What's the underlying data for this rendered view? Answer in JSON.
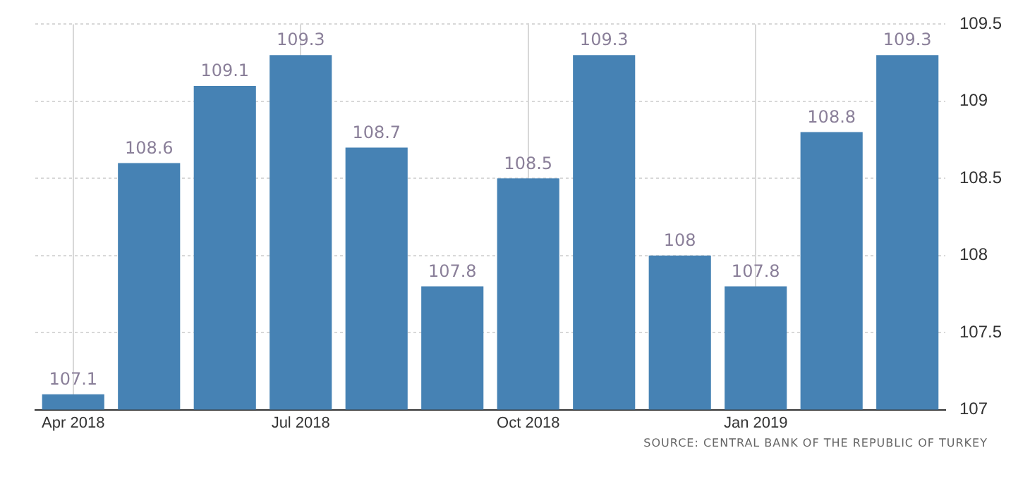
{
  "chart_data": {
    "type": "bar",
    "categories": [
      "Apr 2018",
      null,
      null,
      "Jul 2018",
      null,
      null,
      "Oct 2018",
      null,
      null,
      "Jan 2019",
      null,
      null
    ],
    "values": [
      107.1,
      108.6,
      109.1,
      109.3,
      108.7,
      107.8,
      108.5,
      109.3,
      108,
      107.8,
      108.8,
      109.3
    ],
    "color": "#4682b4",
    "ylim": [
      107,
      109.5
    ],
    "yticks": [
      107,
      107.5,
      108,
      108.5,
      109,
      109.5
    ],
    "grid": true,
    "data_labels": true,
    "legend": false,
    "annotations": [
      "SOURCE: CENTRAL BANK OF THE REPUBLIC OF TURKEY"
    ]
  }
}
